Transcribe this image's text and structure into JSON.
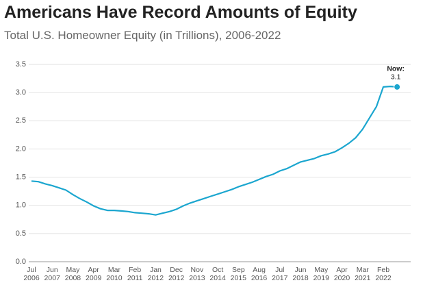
{
  "chart_data": {
    "type": "line",
    "title": "Americans Have Record Amounts of Equity",
    "subtitle": "Total U.S. Homeowner Equity (in Trillions), 2006-2022",
    "categories": [
      "Jul 2006",
      null,
      null,
      "Jun 2007",
      null,
      null,
      "May 2008",
      null,
      null,
      "Apr 2009",
      null,
      null,
      "Mar 2010",
      null,
      null,
      "Feb 2011",
      null,
      null,
      "Jan 2012",
      null,
      null,
      "Dec 2012",
      null,
      null,
      "Nov 2013",
      null,
      null,
      "Oct 2014",
      null,
      null,
      "Sep 2015",
      null,
      null,
      "Aug 2016",
      null,
      null,
      "Jul 2017",
      null,
      null,
      "Jun 2018",
      null,
      null,
      "May 2019",
      null,
      null,
      "Apr 2020",
      null,
      null,
      "Mar 2021",
      null,
      null,
      "Feb 2022",
      null,
      null
    ],
    "values": [
      1.43,
      1.42,
      1.38,
      1.35,
      1.31,
      1.27,
      1.19,
      1.12,
      1.06,
      0.99,
      0.94,
      0.91,
      0.91,
      0.9,
      0.89,
      0.87,
      0.86,
      0.85,
      0.83,
      0.86,
      0.89,
      0.93,
      0.99,
      1.04,
      1.08,
      1.12,
      1.16,
      1.2,
      1.24,
      1.28,
      1.33,
      1.37,
      1.41,
      1.46,
      1.51,
      1.55,
      1.61,
      1.65,
      1.71,
      1.77,
      1.8,
      1.83,
      1.88,
      1.91,
      1.95,
      2.02,
      2.1,
      2.2,
      2.35,
      2.55,
      2.75,
      3.1,
      3.11,
      3.1
    ],
    "color": "#1ba6cf",
    "annotation": "Now:",
    "ylim": [
      0,
      3.5
    ],
    "yticks": [
      {
        "value": 0,
        "label": "0.0"
      },
      {
        "value": 0.5,
        "label": "0.5"
      },
      {
        "value": 1,
        "label": "1.0"
      },
      {
        "value": 1.5,
        "label": "1.5"
      },
      {
        "value": 2,
        "label": "2.0"
      },
      {
        "value": 2.5,
        "label": "2.5"
      },
      {
        "value": 3,
        "label": "3.0"
      },
      {
        "value": 3.5,
        "label": "3.5"
      }
    ],
    "grid": true
  }
}
